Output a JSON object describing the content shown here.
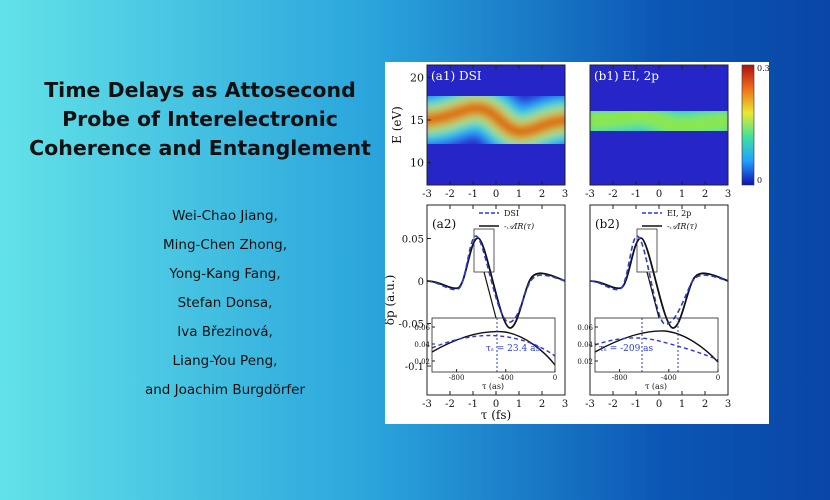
{
  "title": [
    "Time Delays as Attosecond",
    "Probe of Interelectronic",
    "Coherence and Entanglement"
  ],
  "authors": [
    "Wei-Chao Jiang,",
    "Ming-Chen Zhong,",
    "Yong-Kang Fang,",
    "Stefan Donsa,",
    "Iva Březinová,",
    "Liang-You Peng,",
    "and Joachim Burgdörfer"
  ],
  "figure": {
    "top_panels": [
      "(a1) DSI",
      "(b1) EI, 2p"
    ],
    "colorbar": {
      "max": "0.32",
      "min": "0"
    },
    "energy_axis": {
      "label": "E (eV)",
      "ticks": [
        10,
        15,
        20
      ]
    },
    "tau_ticks": [
      -3,
      -2,
      -1,
      0,
      1,
      2,
      3
    ],
    "tau_label": "τ  (fs)",
    "dp_axis": {
      "label": "δp (a.u.)",
      "ticks": [
        -0.1,
        -0.05,
        0,
        0.05
      ]
    },
    "bottom_panels": [
      {
        "label": "(a2)",
        "legend": [
          "DSI",
          "-𝒜IR(τ)"
        ],
        "annotation": "τₛ = 23.4 as"
      },
      {
        "label": "(b2)",
        "legend": [
          "EI, 2p",
          "-𝒜IR(τ)"
        ],
        "annotation": "τₛ = -209 as"
      }
    ],
    "inset": {
      "yticks": [
        0.02,
        0.04,
        0.06
      ],
      "xticks": [
        -800,
        -400,
        0
      ],
      "xlabel": "τ (as)"
    }
  }
}
